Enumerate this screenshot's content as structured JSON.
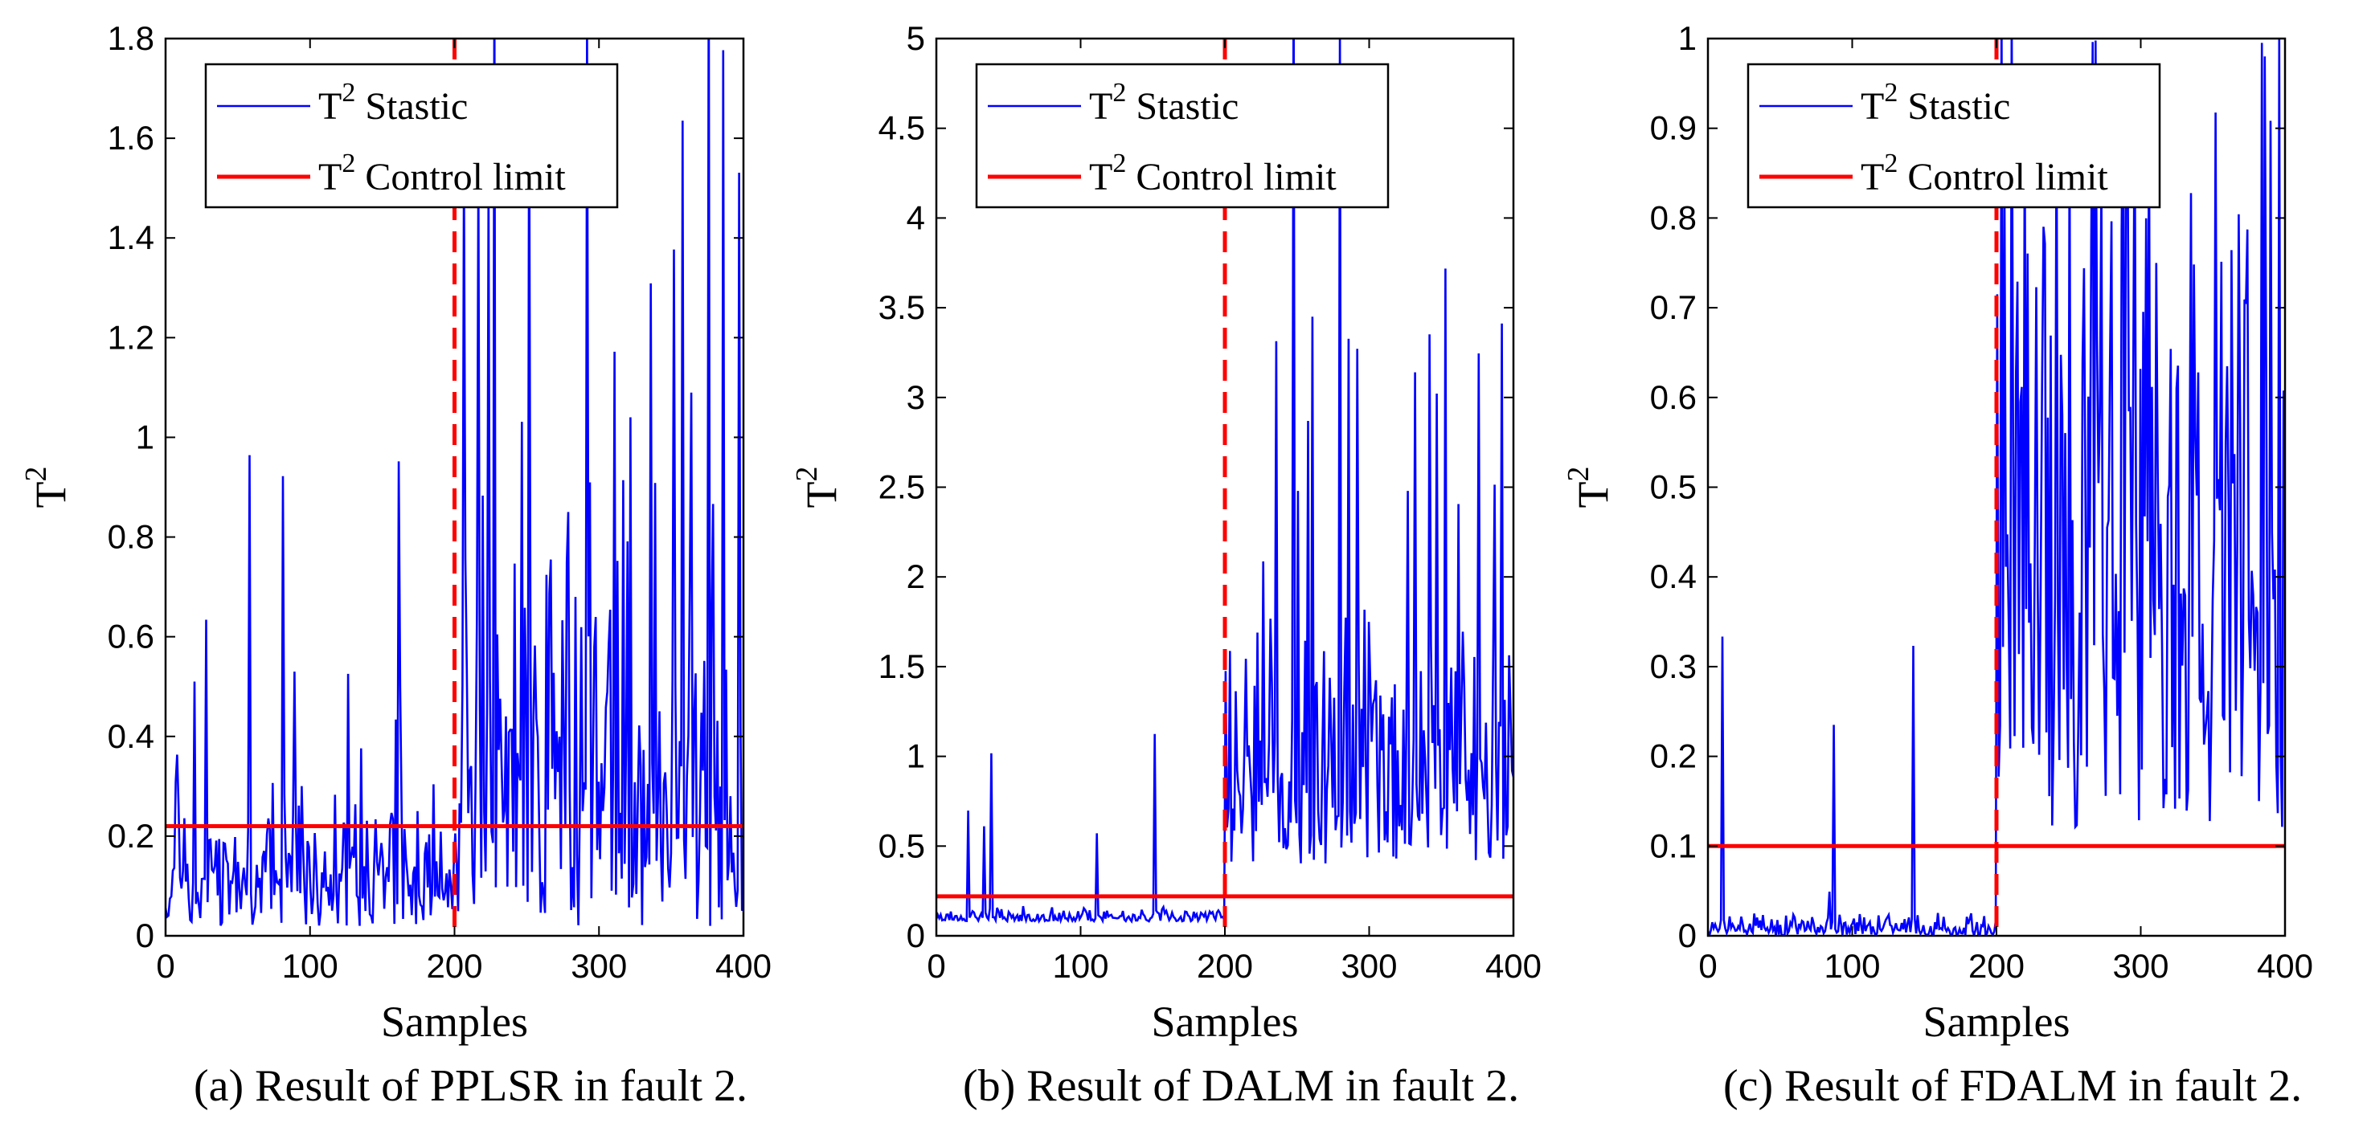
{
  "chart_data": [
    {
      "type": "line",
      "caption": "(a) Result of PPLSR in fault 2.",
      "xlabel": "Samples",
      "ylabel_base": "T",
      "ylabel_sup": "2",
      "xlim": [
        0,
        400
      ],
      "ylim": [
        0,
        1.8
      ],
      "xticks": [
        "0",
        "100",
        "200",
        "300",
        "400"
      ],
      "yticks": [
        "0",
        "0.2",
        "0.4",
        "0.6",
        "0.8",
        "1",
        "1.2",
        "1.4",
        "1.6",
        "1.8"
      ],
      "ytick_values": [
        0,
        0.2,
        0.4,
        0.6,
        0.8,
        1.0,
        1.2,
        1.4,
        1.6,
        1.8
      ],
      "legend": {
        "location": "top-left",
        "stat_base": "T",
        "stat_sup": "2",
        "stat_label": " Stastic",
        "limit_base": "T",
        "limit_sup": "2",
        "limit_label": " Control limit"
      },
      "control_limit": 0.22,
      "fault_sample": 200,
      "seed": 11,
      "series_profile": {
        "n": 400,
        "pre": {
          "base": 0.02,
          "spread": 0.3,
          "spike_prob": 0.08,
          "spike_max": 0.95
        },
        "post": {
          "base": 0.02,
          "spread": 0.95,
          "spike_prob": 0.15,
          "spike_max": 2.0
        }
      },
      "colors": {
        "series": "#0000FF",
        "limit": "#FF0000"
      }
    },
    {
      "type": "line",
      "caption": "(b) Result of DALM in fault 2.",
      "xlabel": "Samples",
      "ylabel_base": "T",
      "ylabel_sup": "2",
      "xlim": [
        0,
        400
      ],
      "ylim": [
        0,
        5
      ],
      "xticks": [
        "0",
        "100",
        "200",
        "300",
        "400"
      ],
      "yticks": [
        "0",
        "0.5",
        "1",
        "1.5",
        "2",
        "2.5",
        "3",
        "3.5",
        "4",
        "4.5",
        "5"
      ],
      "ytick_values": [
        0,
        0.5,
        1.0,
        1.5,
        2.0,
        2.5,
        3.0,
        3.5,
        4.0,
        4.5,
        5.0
      ],
      "legend": {
        "location": "top-left",
        "stat_base": "T",
        "stat_sup": "2",
        "stat_label": " Stastic",
        "limit_base": "T",
        "limit_sup": "2",
        "limit_label": " Control limit"
      },
      "control_limit": 0.22,
      "fault_sample": 200,
      "seed": 23,
      "series_profile": {
        "n": 400,
        "pre": {
          "base": 0.08,
          "spread": 0.09,
          "spike_prob": 0.04,
          "spike_max": 1.1
        },
        "post": {
          "base": 0.4,
          "spread": 1.6,
          "spike_prob": 0.18,
          "spike_max": 5.2
        }
      },
      "colors": {
        "series": "#0000FF",
        "limit": "#FF0000"
      }
    },
    {
      "type": "line",
      "caption": "(c) Result of FDALM in fault 2.",
      "xlabel": "Samples",
      "ylabel_base": "T",
      "ylabel_sup": "2",
      "xlim": [
        0,
        400
      ],
      "ylim": [
        0,
        1
      ],
      "xticks": [
        "0",
        "100",
        "200",
        "300",
        "400"
      ],
      "yticks": [
        "0",
        "0.1",
        "0.2",
        "0.3",
        "0.4",
        "0.5",
        "0.6",
        "0.7",
        "0.8",
        "0.9",
        "1"
      ],
      "ytick_values": [
        0,
        0.1,
        0.2,
        0.3,
        0.4,
        0.5,
        0.6,
        0.7,
        0.8,
        0.9,
        1.0
      ],
      "legend": {
        "location": "top-left",
        "stat_base": "T",
        "stat_sup": "2",
        "stat_label": " Stastic",
        "limit_base": "T",
        "limit_sup": "2",
        "limit_label": " Control limit"
      },
      "control_limit": 0.1,
      "fault_sample": 200,
      "seed": 37,
      "series_profile": {
        "n": 400,
        "pre": {
          "base": 0.0,
          "spread": 0.03,
          "spike_prob": 0.03,
          "spike_max": 0.41
        },
        "post": {
          "base": 0.12,
          "spread": 0.8,
          "spike_prob": 0.3,
          "spike_max": 0.92
        }
      },
      "colors": {
        "series": "#0000FF",
        "limit": "#FF0000"
      }
    }
  ]
}
